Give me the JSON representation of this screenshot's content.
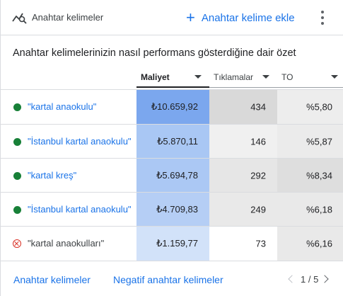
{
  "header": {
    "title": "Anahtar kelimeler",
    "add_label": "Anahtar kelime ekle"
  },
  "subtitle": "Anahtar kelimelerinizin nasıl performans gösterdiğine dair özet",
  "columns": {
    "cost": "Maliyet",
    "clicks": "Tıklamalar",
    "ctr": "TO"
  },
  "colors": {
    "accent": "#1a73e8",
    "enabled_dot": "#188038",
    "removed": "#d93025"
  },
  "rows": [
    {
      "keyword": "\"kartal anaokulu\"",
      "status": "enabled",
      "cost": "₺10.659,92",
      "clicks": "434",
      "ctr": "%5,80"
    },
    {
      "keyword": "\"İstanbul kartal anaokulu\"",
      "status": "enabled",
      "cost": "₺5.870,11",
      "clicks": "146",
      "ctr": "%5,87"
    },
    {
      "keyword": "\"kartal kreş\"",
      "status": "enabled",
      "cost": "₺5.694,78",
      "clicks": "292",
      "ctr": "%8,34"
    },
    {
      "keyword": "\"İstanbul kartal anaokulu\"",
      "status": "enabled",
      "cost": "₺4.709,83",
      "clicks": "249",
      "ctr": "%6,18"
    },
    {
      "keyword": "\"kartal anaokulları\"",
      "status": "removed",
      "cost": "₺1.159,77",
      "clicks": "73",
      "ctr": "%6,16"
    }
  ],
  "footer": {
    "keywords_link": "Anahtar kelimeler",
    "negative_link": "Negatif anahtar kelimeler",
    "page": "1 / 5"
  }
}
